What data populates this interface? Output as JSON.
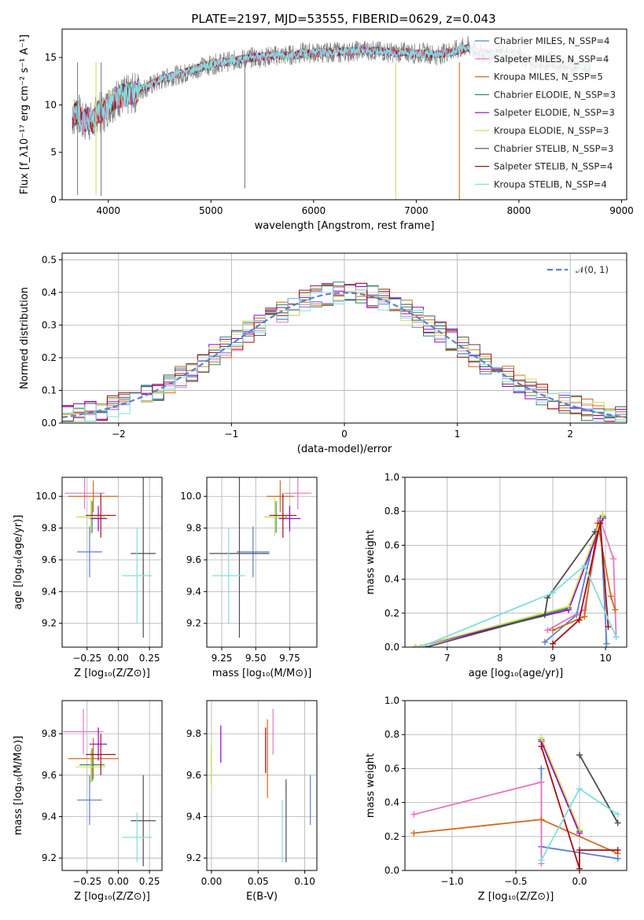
{
  "figure": {
    "title": "PLATE=2197, MJD=53555, FIBERID=0629, z=0.043"
  },
  "chart_data": [
    {
      "id": "spectrum",
      "type": "line",
      "title": "PLATE=2197, MJD=53555, FIBERID=0629, z=0.043",
      "xlabel": "wavelength [Angstrom, rest frame]",
      "ylabel": "Flux [f_λ10⁻¹⁷ erg cm⁻² s⁻¹ A⁻¹]",
      "xlim": [
        3550,
        9050
      ],
      "ylim": [
        0,
        18
      ],
      "xticks": [
        4000,
        5000,
        6000,
        7000,
        8000,
        9000
      ],
      "yticks": [
        0,
        5,
        10,
        15
      ],
      "grid": false,
      "legend_position": "right",
      "series": [
        {
          "name": "Chabrier MILES, N_SSP=4",
          "color": "#5b7fcf"
        },
        {
          "name": "Salpeter MILES, N_SSP=4",
          "color": "#e377c2"
        },
        {
          "name": "Kroupa MILES, N_SSP=5",
          "color": "#d2691e"
        },
        {
          "name": "Chabrier ELODIE, N_SSP=3",
          "color": "#2e8b57"
        },
        {
          "name": "Salpeter ELODIE, N_SSP=3",
          "color": "#9400d3"
        },
        {
          "name": "Kroupa ELODIE, N_SSP=3",
          "color": "#d4e157"
        },
        {
          "name": "Chabrier STELIB, N_SSP=3",
          "color": "#4d4d4d"
        },
        {
          "name": "Salpeter STELIB, N_SSP=4",
          "color": "#a50f15"
        },
        {
          "name": "Kroupa STELIB, N_SSP=4",
          "color": "#80dede"
        }
      ],
      "data_series": {
        "name": "data",
        "color": "#808080",
        "x": [
          3650,
          3700,
          3750,
          3800,
          3850,
          3900,
          3950,
          4000,
          4100,
          4200,
          4300,
          4400,
          4500,
          4600,
          4700,
          4800,
          4900,
          5000,
          5100,
          5200,
          5300,
          5400,
          5500,
          5600,
          5700,
          5800,
          5900,
          6000,
          6100,
          6200,
          6300,
          6400,
          6500,
          6600,
          6700,
          6800,
          6900,
          7000,
          7100,
          7200,
          7300,
          7400,
          7500,
          7600,
          7700,
          7800,
          7900,
          8000,
          8100,
          8200,
          8300,
          8400,
          8500,
          8600,
          8700
        ],
        "y": [
          8.5,
          9.5,
          8.0,
          8.5,
          8.0,
          9.5,
          9.0,
          10.0,
          10.8,
          11.0,
          11.5,
          12.0,
          12.5,
          13.0,
          13.2,
          13.5,
          14.0,
          14.2,
          14.5,
          14.6,
          14.8,
          15.0,
          15.0,
          15.2,
          15.2,
          15.3,
          15.5,
          15.5,
          15.5,
          15.6,
          15.5,
          15.7,
          15.8,
          15.7,
          15.6,
          15.5,
          15.6,
          15.4,
          15.5,
          15.2,
          15.6,
          15.8,
          16.2,
          15.5,
          15.3,
          15.4,
          15.2,
          15.3,
          14.6,
          14.2,
          14.6,
          14.3,
          14.1,
          14.2,
          14.0
        ]
      },
      "model_y": [
        8.6,
        9.3,
        8.2,
        8.6,
        8.2,
        9.3,
        9.2,
        10.2,
        10.9,
        11.1,
        11.6,
        12.1,
        12.6,
        13.0,
        13.3,
        13.6,
        14.0,
        14.3,
        14.5,
        14.6,
        14.8,
        15.0,
        15.1,
        15.2,
        15.2,
        15.3,
        15.4,
        15.5,
        15.5,
        15.6,
        15.6,
        15.7,
        15.7,
        15.7,
        15.6,
        15.5,
        15.6,
        15.4,
        15.4,
        15.3,
        15.5,
        15.7,
        16.0,
        15.6,
        15.3,
        15.4,
        15.3,
        15.2,
        14.7,
        14.3,
        14.5,
        14.3,
        14.2,
        14.2,
        14.0
      ]
    },
    {
      "id": "residuals",
      "type": "area",
      "xlabel": "(data-model)/error",
      "ylabel": "Normed distribution",
      "xlim": [
        -2.5,
        2.5
      ],
      "ylim": [
        0,
        0.52
      ],
      "xticks": [
        -2,
        -1,
        0,
        1,
        2
      ],
      "yticks": [
        0.0,
        0.1,
        0.2,
        0.3,
        0.4,
        0.5
      ],
      "grid": true,
      "legend_position": "top-right",
      "legend": "𝒩(0, 1)",
      "reference_curve": {
        "name": "𝒩(0, 1)",
        "color": "#5b7fcf",
        "mu": 0,
        "sigma": 1
      },
      "bin_width": 0.1
    },
    {
      "id": "age_vs_Z",
      "type": "scatter",
      "xlabel": "Z [log₁₀(Z/Z⊙)]",
      "ylabel": "age  [log₁₀(age/yr)]",
      "xlim": [
        -0.45,
        0.35
      ],
      "ylim": [
        9.05,
        10.12
      ],
      "xticks": [
        -0.25,
        0.0,
        0.25
      ],
      "yticks": [
        9.2,
        9.4,
        9.6,
        9.8,
        10.0
      ],
      "grid": true,
      "points": [
        {
          "x": -0.23,
          "y": 9.65,
          "xerr": 0.1,
          "yerr": 0.16
        },
        {
          "x": -0.27,
          "y": 10.02,
          "xerr": 0.16,
          "yerr": 0.1
        },
        {
          "x": -0.2,
          "y": 10.0,
          "xerr": 0.2,
          "yerr": 0.1
        },
        {
          "x": -0.21,
          "y": 9.87,
          "xerr": 0.1,
          "yerr": 0.1
        },
        {
          "x": -0.16,
          "y": 9.86,
          "xerr": 0.07,
          "yerr": 0.08
        },
        {
          "x": -0.22,
          "y": 9.87,
          "xerr": 0.12,
          "yerr": 0.11
        },
        {
          "x": 0.2,
          "y": 9.64,
          "xerr": 0.1,
          "yerr": 0.53
        },
        {
          "x": -0.14,
          "y": 9.88,
          "xerr": 0.12,
          "yerr": 0.14
        },
        {
          "x": 0.15,
          "y": 9.5,
          "xerr": 0.12,
          "yerr": 0.3
        }
      ]
    },
    {
      "id": "age_vs_mass",
      "type": "scatter",
      "xlabel": "mass [log₁₀(M/M⊙)]",
      "ylabel": "",
      "xlim": [
        9.14,
        9.95
      ],
      "ylim": [
        9.05,
        10.12
      ],
      "xticks": [
        9.25,
        9.5,
        9.75
      ],
      "yticks": [
        9.2,
        9.4,
        9.6,
        9.8,
        10.0
      ],
      "grid": true,
      "points": [
        {
          "x": 9.48,
          "y": 9.65,
          "xerr": 0.12,
          "yerr": 0.16
        },
        {
          "x": 9.81,
          "y": 10.02,
          "xerr": 0.1,
          "yerr": 0.1
        },
        {
          "x": 9.68,
          "y": 10.0,
          "xerr": 0.1,
          "yerr": 0.1
        },
        {
          "x": 9.65,
          "y": 9.87,
          "xerr": 0.08,
          "yerr": 0.1
        },
        {
          "x": 9.75,
          "y": 9.86,
          "xerr": 0.08,
          "yerr": 0.08
        },
        {
          "x": 9.64,
          "y": 9.87,
          "xerr": 0.08,
          "yerr": 0.12
        },
        {
          "x": 9.38,
          "y": 9.64,
          "xerr": 0.22,
          "yerr": 0.53
        },
        {
          "x": 9.7,
          "y": 9.88,
          "xerr": 0.1,
          "yerr": 0.14
        },
        {
          "x": 9.3,
          "y": 9.5,
          "xerr": 0.12,
          "yerr": 0.3
        }
      ]
    },
    {
      "id": "mass_weight_vs_age",
      "type": "line",
      "xlabel": "age  [log₁₀(age/yr)]",
      "ylabel": "mass weight",
      "xlim": [
        6.2,
        10.4
      ],
      "ylim": [
        0.0,
        1.0
      ],
      "xticks": [
        7,
        8,
        9,
        10
      ],
      "yticks": [
        0.0,
        0.2,
        0.4,
        0.6,
        0.8,
        1.0
      ],
      "grid": true,
      "series": [
        {
          "x": [
            8.85,
            9.45,
            9.75,
            9.9,
            10.02
          ],
          "y": [
            0.03,
            0.19,
            0.6,
            0.76,
            0.02
          ]
        },
        {
          "x": [
            8.9,
            9.6,
            9.9,
            10.15,
            10.2
          ],
          "y": [
            0.1,
            0.22,
            0.75,
            0.52,
            0.06
          ]
        },
        {
          "x": [
            9.0,
            9.6,
            9.85,
            10.1,
            10.18
          ],
          "y": [
            0.1,
            0.18,
            0.73,
            0.3,
            0.22
          ]
        },
        {
          "x": [
            6.4,
            9.3,
            9.95
          ],
          "y": [
            0.0,
            0.23,
            0.77
          ]
        },
        {
          "x": [
            6.4,
            9.3,
            9.95
          ],
          "y": [
            0.0,
            0.22,
            0.76
          ]
        },
        {
          "x": [
            6.4,
            9.3,
            9.95
          ],
          "y": [
            0.0,
            0.24,
            0.78
          ]
        },
        {
          "x": [
            6.6,
            8.85,
            8.9,
            9.8
          ],
          "y": [
            0.0,
            0.19,
            0.29,
            0.68
          ]
        },
        {
          "x": [
            9.0,
            9.5,
            9.9,
            10.05
          ],
          "y": [
            0.02,
            0.16,
            0.73,
            0.12
          ]
        },
        {
          "x": [
            6.5,
            9.0,
            9.6,
            10.2
          ],
          "y": [
            0.0,
            0.32,
            0.48,
            0.06
          ]
        }
      ]
    },
    {
      "id": "mass_vs_Z",
      "type": "scatter",
      "xlabel": "Z [log₁₀(Z/Z⊙)]",
      "ylabel": "mass [log₁₀(M/M⊙)]",
      "xlim": [
        -0.45,
        0.35
      ],
      "ylim": [
        9.14,
        9.96
      ],
      "xticks": [
        -0.25,
        0.0,
        0.25
      ],
      "yticks": [
        9.2,
        9.4,
        9.6,
        9.8
      ],
      "grid": true,
      "points": [
        {
          "x": -0.23,
          "y": 9.48,
          "xerr": 0.1,
          "yerr": 0.12
        },
        {
          "x": -0.28,
          "y": 9.81,
          "xerr": 0.16,
          "yerr": 0.11
        },
        {
          "x": -0.2,
          "y": 9.68,
          "xerr": 0.2,
          "yerr": 0.1
        },
        {
          "x": -0.21,
          "y": 9.65,
          "xerr": 0.1,
          "yerr": 0.08
        },
        {
          "x": -0.16,
          "y": 9.75,
          "xerr": 0.07,
          "yerr": 0.08
        },
        {
          "x": -0.22,
          "y": 9.64,
          "xerr": 0.12,
          "yerr": 0.08
        },
        {
          "x": 0.2,
          "y": 9.38,
          "xerr": 0.1,
          "yerr": 0.22
        },
        {
          "x": -0.14,
          "y": 9.7,
          "xerr": 0.12,
          "yerr": 0.1
        },
        {
          "x": 0.15,
          "y": 9.3,
          "xerr": 0.12,
          "yerr": 0.12
        }
      ]
    },
    {
      "id": "mass_vs_ebv",
      "type": "scatter",
      "xlabel": "E(B-V)",
      "ylabel": "",
      "xlim": [
        -0.005,
        0.113
      ],
      "ylim": [
        9.14,
        9.96
      ],
      "xticks": [
        0.0,
        0.05,
        0.1
      ],
      "yticks": [
        9.2,
        9.4,
        9.6,
        9.8
      ],
      "grid": true,
      "points": [
        {
          "x": 0.106,
          "y": 9.48,
          "xerr": 0,
          "yerr": 0.12
        },
        {
          "x": 0.066,
          "y": 9.81,
          "xerr": 0,
          "yerr": 0.11
        },
        {
          "x": 0.06,
          "y": 9.68,
          "xerr": 0,
          "yerr": 0.19
        },
        {
          "x": 0.0,
          "y": 9.65,
          "xerr": 0,
          "yerr": 0.09
        },
        {
          "x": 0.01,
          "y": 9.75,
          "xerr": 0,
          "yerr": 0.09
        },
        {
          "x": 0.0,
          "y": 9.64,
          "xerr": 0,
          "yerr": 0.12
        },
        {
          "x": 0.08,
          "y": 9.38,
          "xerr": 0,
          "yerr": 0.2
        },
        {
          "x": 0.058,
          "y": 9.72,
          "xerr": 0,
          "yerr": 0.11
        },
        {
          "x": 0.076,
          "y": 9.33,
          "xerr": 0,
          "yerr": 0.15
        }
      ]
    },
    {
      "id": "mass_weight_vs_Z",
      "type": "line",
      "xlabel": "Z [log₁₀(Z/Z⊙)]",
      "ylabel": "mass weight",
      "xlim": [
        -1.37,
        0.37
      ],
      "ylim": [
        0.0,
        1.0
      ],
      "xticks": [
        -1.0,
        -0.5,
        0.0
      ],
      "yticks": [
        0.0,
        0.2,
        0.4,
        0.6,
        0.8,
        1.0
      ],
      "grid": true,
      "series": [
        {
          "x": [
            -0.3,
            -0.3,
            0.3
          ],
          "y": [
            0.6,
            0.14,
            0.07
          ]
        },
        {
          "x": [
            -1.3,
            -0.3,
            -0.3
          ],
          "y": [
            0.33,
            0.52,
            0.04
          ]
        },
        {
          "x": [
            -1.3,
            -0.3,
            0.3
          ],
          "y": [
            0.22,
            0.3,
            0.1
          ]
        },
        {
          "x": [
            -0.3,
            0.0
          ],
          "y": [
            0.77,
            0.23
          ]
        },
        {
          "x": [
            -0.3,
            0.0
          ],
          "y": [
            0.76,
            0.22
          ]
        },
        {
          "x": [
            -0.3,
            0.0
          ],
          "y": [
            0.78,
            0.24
          ]
        },
        {
          "x": [
            0.0,
            0.3
          ],
          "y": [
            0.68,
            0.28
          ]
        },
        {
          "x": [
            -0.3,
            0.0,
            0.0,
            0.3
          ],
          "y": [
            0.73,
            0.01,
            0.12,
            0.12
          ]
        },
        {
          "x": [
            -0.3,
            0.0,
            0.3
          ],
          "y": [
            0.06,
            0.48,
            0.33
          ]
        }
      ]
    }
  ]
}
